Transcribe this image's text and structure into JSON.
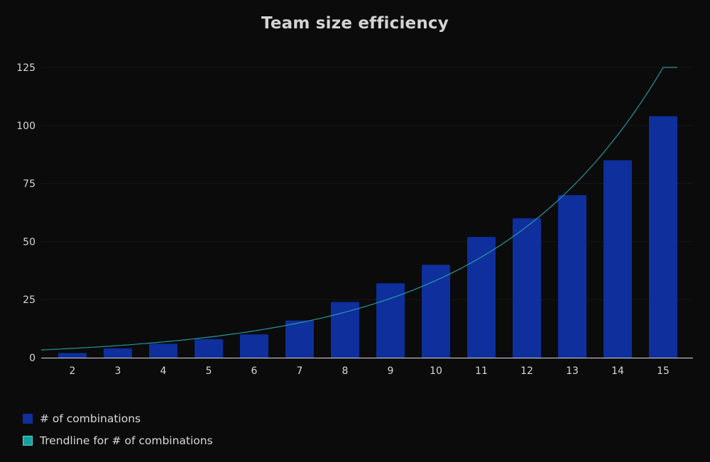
{
  "chart_data": {
    "type": "bar",
    "title": "Team size efficiency",
    "categories": [
      "2",
      "3",
      "4",
      "5",
      "6",
      "7",
      "8",
      "9",
      "10",
      "11",
      "12",
      "13",
      "14",
      "15"
    ],
    "series": [
      {
        "name": "# of combinations",
        "type": "bar",
        "color": "#0e2f9c",
        "values": [
          2,
          4,
          6,
          8,
          10,
          16,
          24,
          32,
          40,
          52,
          60,
          70,
          85,
          104
        ]
      },
      {
        "name": "Trendline for # of combinations",
        "type": "trendline",
        "color": "#2aa6a6",
        "values": [
          4,
          5.5,
          7.5,
          10,
          13.5,
          18,
          24,
          31,
          39.5,
          50,
          62,
          78,
          97,
          125
        ]
      }
    ],
    "yticks": [
      0,
      25,
      50,
      75,
      100,
      125
    ],
    "ylim": [
      0,
      125
    ],
    "grid": true,
    "legend_position": "bottom-left"
  }
}
